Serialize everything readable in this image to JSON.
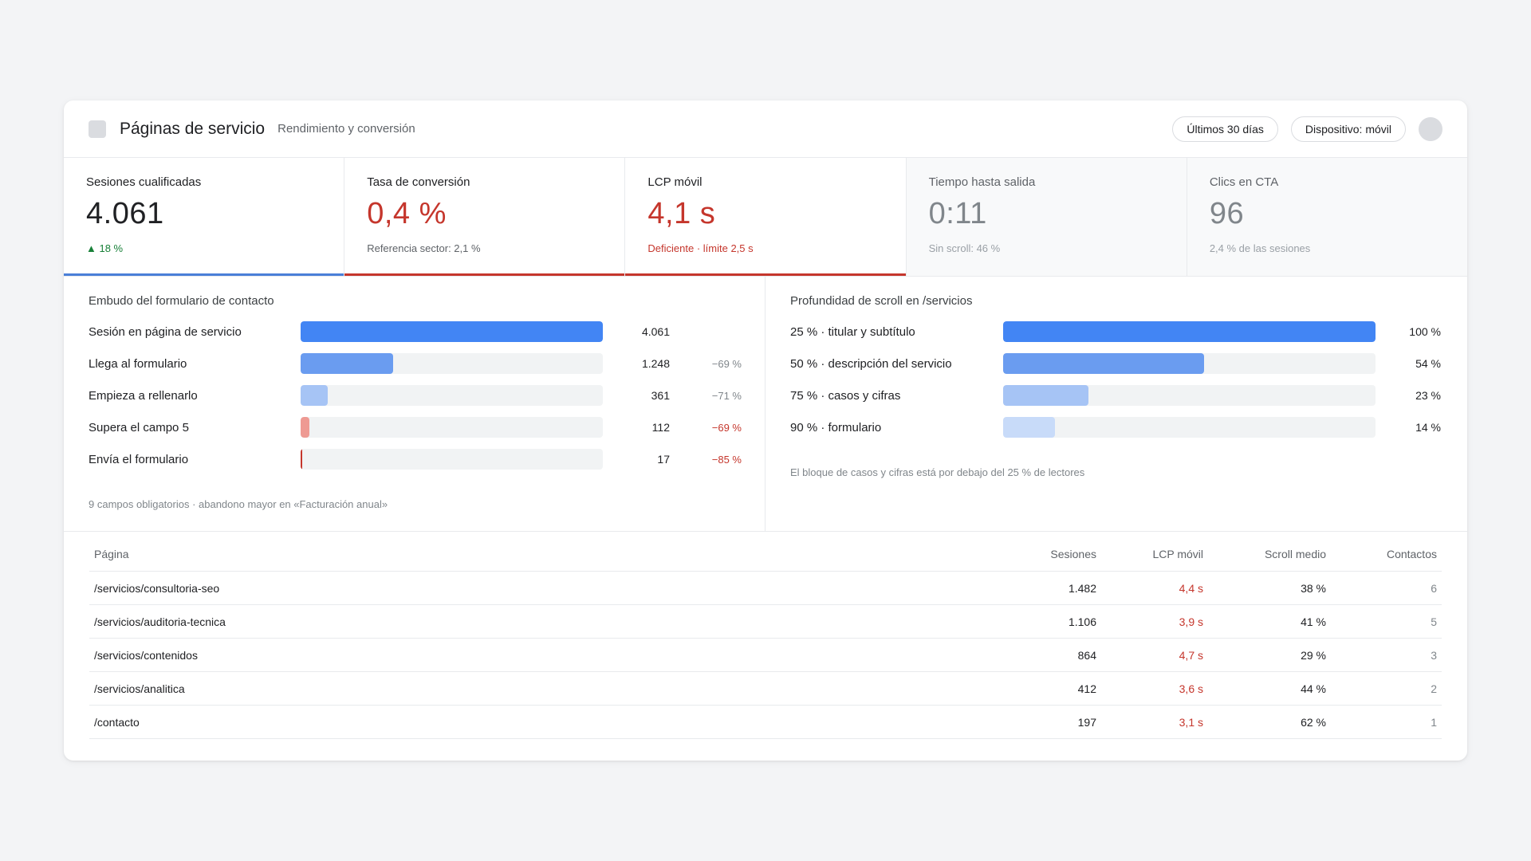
{
  "header": {
    "title": "Páginas de servicio",
    "subtitle": "Rendimiento y conversión",
    "period_label": "Últimos 30 días",
    "device_label": "Dispositivo: móvil"
  },
  "kpis": [
    {
      "label": "Sesiones cualificadas",
      "value": "4.061",
      "note": "▲ 18 %"
    },
    {
      "label": "Tasa de conversión",
      "value": "0,4 %",
      "note": "Referencia sector: 2,1 %"
    },
    {
      "label": "LCP móvil",
      "value": "4,1 s",
      "note": "Deficiente · límite 2,5 s"
    },
    {
      "label": "Tiempo hasta salida",
      "value": "0:11",
      "note": "Sin scroll: 46 %"
    },
    {
      "label": "Clics en CTA",
      "value": "96",
      "note": "2,4 % de las sesiones"
    }
  ],
  "funnel": {
    "title": "Embudo del formulario de contacto",
    "steps": [
      {
        "label": "Sesión en página de servicio",
        "value": "4.061",
        "drop": "",
        "share": 1.0,
        "color": "#4285f4"
      },
      {
        "label": "Llega al formulario",
        "value": "1.248",
        "drop": "−69 %",
        "share": 0.307,
        "color": "#6a9cf0"
      },
      {
        "label": "Empieza a rellenarlo",
        "value": "361",
        "drop": "−71 %",
        "share": 0.089,
        "color": "#a6c4f5"
      },
      {
        "label": "Supera el campo 5",
        "value": "112",
        "drop": "−69 %",
        "share": 0.028,
        "color": "#ee9a93"
      },
      {
        "label": "Envía el formulario",
        "value": "17",
        "drop": "−85 %",
        "share": 0.004,
        "color": "#c5362c"
      }
    ],
    "note": "9 campos obligatorios · abandono mayor en «Facturación anual»"
  },
  "scroll": {
    "title": "Profundidad de scroll en /servicios",
    "rows": [
      {
        "label": "25 % · titular y subtítulo",
        "pct": "100 %",
        "share": 1.0,
        "color": "#4285f4"
      },
      {
        "label": "50 % · descripción del servicio",
        "pct": "54 %",
        "share": 0.54,
        "color": "#6a9cf0"
      },
      {
        "label": "75 % · casos y cifras",
        "pct": "23 %",
        "share": 0.23,
        "color": "#a6c4f5"
      },
      {
        "label": "90 % · formulario",
        "pct": "14 %",
        "share": 0.14,
        "color": "#c8dbf9"
      }
    ],
    "note": "El bloque de casos y cifras está por debajo del 25 % de lectores"
  },
  "table": {
    "columns": [
      "Página",
      "Sesiones",
      "LCP móvil",
      "Scroll medio",
      "Contactos"
    ],
    "rows": [
      [
        "/servicios/consultoria-seo",
        "1.482",
        "4,4 s",
        "38 %",
        "6"
      ],
      [
        "/servicios/auditoria-tecnica",
        "1.106",
        "3,9 s",
        "41 %",
        "5"
      ],
      [
        "/servicios/contenidos",
        "864",
        "4,7 s",
        "29 %",
        "3"
      ],
      [
        "/servicios/analitica",
        "412",
        "3,6 s",
        "44 %",
        "2"
      ],
      [
        "/contacto",
        "197",
        "3,1 s",
        "62 %",
        "1"
      ]
    ]
  },
  "colors": {
    "accent_blue": "#4285f4",
    "alert_red": "#c5362c",
    "positive_green": "#188038"
  }
}
